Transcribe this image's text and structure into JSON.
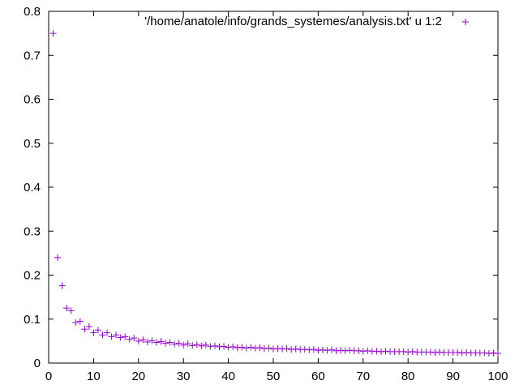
{
  "chart_data": {
    "type": "scatter",
    "title": "",
    "xlabel": "",
    "ylabel": "",
    "xlim": [
      0,
      100
    ],
    "ylim": [
      0,
      0.8
    ],
    "x_ticks": [
      0,
      10,
      20,
      30,
      40,
      50,
      60,
      70,
      80,
      90,
      100
    ],
    "x_tick_labels": [
      "0",
      "10",
      "20",
      "30",
      "40",
      "50",
      "60",
      "70",
      "80",
      "90",
      "100"
    ],
    "y_ticks": [
      0,
      0.1,
      0.2,
      0.3,
      0.4,
      0.5,
      0.6,
      0.7,
      0.8
    ],
    "y_tick_labels": [
      "0",
      "0.1",
      "0.2",
      "0.3",
      "0.4",
      "0.5",
      "0.6",
      "0.7",
      "0.8"
    ],
    "grid": false,
    "legend_position": "top-right",
    "series": [
      {
        "name": "'/home/anatole/info/grands_systemes/analysis.txt' u 1:2",
        "color": "#9400d3",
        "marker": "plus",
        "x": [
          1,
          2,
          3,
          4,
          5,
          6,
          7,
          8,
          9,
          10,
          11,
          12,
          13,
          14,
          15,
          16,
          17,
          18,
          19,
          20,
          21,
          22,
          23,
          24,
          25,
          26,
          27,
          28,
          29,
          30,
          31,
          32,
          33,
          34,
          35,
          36,
          37,
          38,
          39,
          40,
          41,
          42,
          43,
          44,
          45,
          46,
          47,
          48,
          49,
          50,
          51,
          52,
          53,
          54,
          55,
          56,
          57,
          58,
          59,
          60,
          61,
          62,
          63,
          64,
          65,
          66,
          67,
          68,
          69,
          70,
          71,
          72,
          73,
          74,
          75,
          76,
          77,
          78,
          79,
          80,
          81,
          82,
          83,
          84,
          85,
          86,
          87,
          88,
          89,
          90,
          91,
          92,
          93,
          94,
          95,
          96,
          97,
          98,
          99,
          100
        ],
        "y": [
          0.75,
          0.24,
          0.176,
          0.125,
          0.119,
          0.092,
          0.095,
          0.077,
          0.083,
          0.069,
          0.075,
          0.064,
          0.069,
          0.06,
          0.064,
          0.058,
          0.06,
          0.054,
          0.057,
          0.05,
          0.053,
          0.048,
          0.051,
          0.047,
          0.049,
          0.045,
          0.047,
          0.043,
          0.045,
          0.041,
          0.044,
          0.04,
          0.042,
          0.039,
          0.041,
          0.038,
          0.039,
          0.037,
          0.038,
          0.036,
          0.037,
          0.035,
          0.036,
          0.034,
          0.036,
          0.034,
          0.035,
          0.033,
          0.034,
          0.032,
          0.033,
          0.032,
          0.033,
          0.031,
          0.032,
          0.031,
          0.031,
          0.03,
          0.031,
          0.029,
          0.03,
          0.029,
          0.03,
          0.028,
          0.029,
          0.028,
          0.029,
          0.028,
          0.028,
          0.027,
          0.028,
          0.027,
          0.027,
          0.026,
          0.027,
          0.026,
          0.026,
          0.026,
          0.026,
          0.025,
          0.026,
          0.025,
          0.025,
          0.025,
          0.025,
          0.024,
          0.025,
          0.024,
          0.024,
          0.024,
          0.024,
          0.023,
          0.024,
          0.023,
          0.023,
          0.023,
          0.023,
          0.022,
          0.023,
          0.022
        ]
      }
    ]
  }
}
